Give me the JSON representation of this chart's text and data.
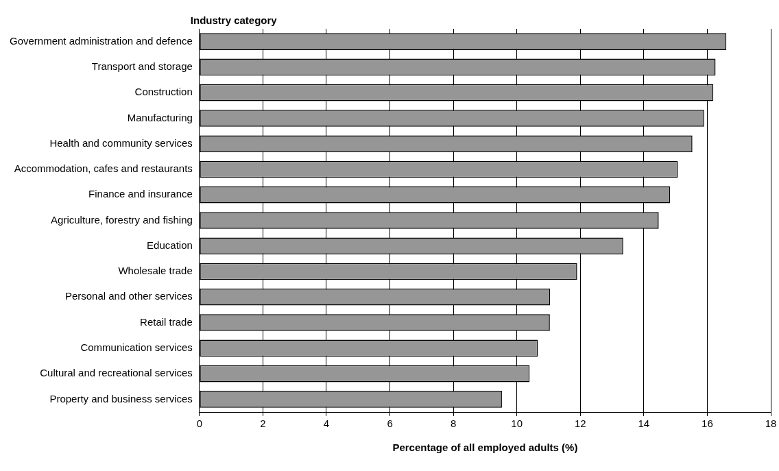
{
  "chart_data": {
    "type": "bar",
    "orientation": "horizontal",
    "ylabel": "Industry category",
    "xlabel": "Percentage of all employed adults (%)",
    "categories": [
      "Government administration and defence",
      "Transport and storage",
      "Construction",
      "Manufacturing",
      "Health and community services",
      "Accommodation, cafes and restaurants",
      "Finance and insurance",
      "Agriculture, forestry and fishing",
      "Education",
      "Wholesale trade",
      "Personal and other services",
      "Retail trade",
      "Communication services",
      "Cultural and recreational services",
      "Property and business services"
    ],
    "values": [
      16.6,
      16.26,
      16.19,
      15.9,
      15.53,
      15.07,
      14.83,
      14.47,
      13.35,
      11.9,
      11.05,
      11.04,
      10.66,
      10.4,
      9.53
    ],
    "color": "#969696",
    "xlim": [
      0,
      18
    ],
    "xticks": [
      0,
      2,
      4,
      6,
      8,
      10,
      12,
      14,
      16,
      18
    ],
    "grid": "x",
    "legend": false
  }
}
